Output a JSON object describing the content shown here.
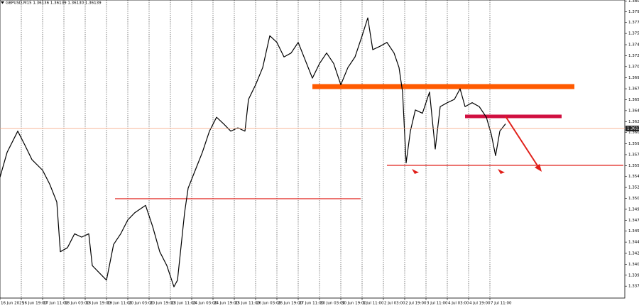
{
  "chart_data": {
    "type": "line",
    "title": "GBPUSD,M15 1.36136 1.36139 1.36130 1.36139",
    "current_price": 1.36139,
    "grid": true,
    "series": [
      {
        "name": "GBPUSD,M15",
        "color": "#000000",
        "x": [
          0,
          2,
          5,
          7,
          9,
          12,
          14,
          16,
          17,
          19,
          21,
          23,
          25,
          26,
          28,
          30,
          32,
          34,
          36,
          38,
          41,
          43,
          45,
          47,
          49,
          50,
          52,
          53,
          55,
          57,
          59,
          61,
          63,
          65,
          67,
          69,
          70,
          72,
          74,
          76,
          78,
          80,
          82,
          84,
          86,
          88,
          90,
          92,
          94,
          96,
          98,
          100,
          102,
          103.6,
          105,
          107,
          109,
          111,
          112.4,
          113.4,
          114.4,
          115.6,
          117,
          119,
          121,
          122.6,
          124,
          126,
          128,
          129.6,
          131,
          133,
          135,
          137,
          138.4,
          139.6,
          140.8,
          142.4
        ],
        "values": [
          1.35405,
          1.3578,
          1.361,
          1.3589,
          1.3567,
          1.3551,
          1.353,
          1.3503,
          1.3428,
          1.3434,
          1.3455,
          1.345,
          1.3455,
          1.3407,
          1.3396,
          1.3385,
          1.3439,
          1.3455,
          1.3476,
          1.3487,
          1.3498,
          1.3466,
          1.3428,
          1.3407,
          1.3375,
          1.3385,
          1.3487,
          1.3524,
          1.3551,
          1.3578,
          1.361,
          1.3631,
          1.3621,
          1.361,
          1.3615,
          1.361,
          1.3658,
          1.368,
          1.3706,
          1.3754,
          1.3744,
          1.3722,
          1.3728,
          1.3744,
          1.3717,
          1.369,
          1.3712,
          1.3728,
          1.3712,
          1.368,
          1.3706,
          1.3722,
          1.3754,
          1.3781,
          1.3733,
          1.3738,
          1.3744,
          1.3728,
          1.3706,
          1.3669,
          1.3562,
          1.361,
          1.3642,
          1.3637,
          1.3669,
          1.3583,
          1.3647,
          1.3653,
          1.3658,
          1.3674,
          1.3647,
          1.3653,
          1.3647,
          1.3631,
          1.3605,
          1.3573,
          1.361,
          1.3621
        ]
      }
    ],
    "xlim": [
      0,
      176
    ],
    "xticks": [
      {
        "value": 0,
        "label": "16 Jun 2025"
      },
      {
        "value": 6,
        "label": "16 Jun 19:00"
      },
      {
        "value": 12,
        "label": "17 Jun 11:00"
      },
      {
        "value": 18,
        "label": "18 Jun 03:00"
      },
      {
        "value": 24,
        "label": "18 Jun 19:00"
      },
      {
        "value": 30,
        "label": "19 Jun 11:00"
      },
      {
        "value": 36,
        "label": "20 Jun 03:00"
      },
      {
        "value": 42,
        "label": "20 Jun 19:00"
      },
      {
        "value": 48,
        "label": "23 Jun 11:00"
      },
      {
        "value": 54,
        "label": "24 Jun 03:00"
      },
      {
        "value": 60,
        "label": "24 Jun 19:00"
      },
      {
        "value": 66,
        "label": "25 Jun 11:00"
      },
      {
        "value": 72,
        "label": "26 Jun 03:00"
      },
      {
        "value": 78,
        "label": "26 Jun 19:00"
      },
      {
        "value": 84,
        "label": "27 Jun 11:00"
      },
      {
        "value": 90,
        "label": "30 Jun 03:00"
      },
      {
        "value": 96,
        "label": "30 Jun 19:00"
      },
      {
        "value": 102,
        "label": "1 Jul 11:00"
      },
      {
        "value": 108,
        "label": "2 Jul 03:00"
      },
      {
        "value": 114,
        "label": "2 Jul 19:00"
      },
      {
        "value": 120,
        "label": "3 Jul 11:00"
      },
      {
        "value": 126,
        "label": "4 Jul 03:00"
      },
      {
        "value": 132,
        "label": "4 Jul 19:00"
      },
      {
        "value": 138,
        "label": "7 Jul 11:00"
      }
    ],
    "ylim": [
      1.3358,
      1.3808
    ],
    "yticks": [
      1.38065,
      1.37905,
      1.3774,
      1.37575,
      1.37405,
      1.3724,
      1.37075,
      1.36905,
      1.3674,
      1.36575,
      1.3641,
      1.36245,
      1.3608,
      1.3591,
      1.35745,
      1.3558,
      1.35415,
      1.3525,
      1.35085,
      1.3492,
      1.34755,
      1.3459,
      1.34425,
      1.34255,
      1.3409,
      1.33925,
      1.3376
    ]
  }
}
